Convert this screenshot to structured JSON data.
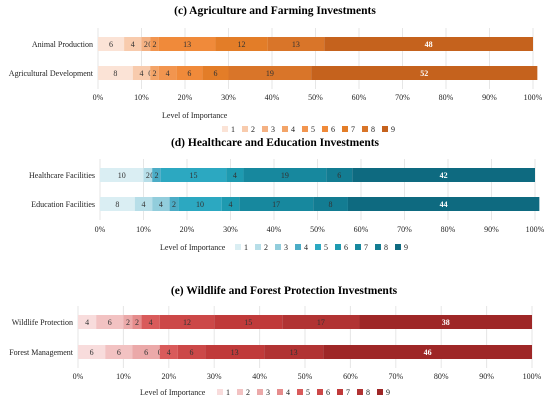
{
  "figure": {
    "legend_title": "Level of Importance",
    "levels": [
      "1",
      "2",
      "3",
      "4",
      "5",
      "6",
      "7",
      "8",
      "9"
    ]
  },
  "chart_data": [
    {
      "type": "bar",
      "orientation": "horizontal",
      "stacked": true,
      "title": "(c)   Agriculture and Farming Investments",
      "xlabel": "",
      "ylabel": "",
      "xlim": [
        0,
        100
      ],
      "x_ticks": [
        "0%",
        "10%",
        "20%",
        "30%",
        "40%",
        "50%",
        "60%",
        "70%",
        "80%",
        "90%",
        "100%"
      ],
      "legend_title": "Level of Importance",
      "legend_position": "bottom",
      "palette": [
        "#FBE3D6",
        "#F8CBAD",
        "#F4B183",
        "#F3A468",
        "#F2954F",
        "#F08A3A",
        "#E37D28",
        "#D97529",
        "#C5621D"
      ],
      "label_colors": [
        "#333333",
        "#333333",
        "#333333",
        "#333333",
        "#333333",
        "#333333",
        "#333333",
        "#333333",
        "#ffffff"
      ],
      "categories": [
        "Animal Production",
        "Agricultural Development"
      ],
      "series": [
        {
          "name": "1",
          "values": [
            6,
            8
          ]
        },
        {
          "name": "2",
          "values": [
            4,
            4
          ]
        },
        {
          "name": "3",
          "values": [
            2,
            0
          ]
        },
        {
          "name": "4",
          "values": [
            0,
            2
          ]
        },
        {
          "name": "5",
          "values": [
            2,
            4
          ]
        },
        {
          "name": "6",
          "values": [
            13,
            6
          ]
        },
        {
          "name": "7",
          "values": [
            12,
            6
          ]
        },
        {
          "name": "8",
          "values": [
            13,
            19
          ]
        },
        {
          "name": "9",
          "values": [
            48,
            52
          ]
        }
      ]
    },
    {
      "type": "bar",
      "orientation": "horizontal",
      "stacked": true,
      "title": "(d)   Healthcare and Education Investments",
      "xlabel": "",
      "ylabel": "",
      "xlim": [
        0,
        100
      ],
      "x_ticks": [
        "0%",
        "10%",
        "20%",
        "30%",
        "40%",
        "50%",
        "60%",
        "70%",
        "80%",
        "90%",
        "100%"
      ],
      "legend_title": "Level of Importance",
      "legend_position": "bottom",
      "palette": [
        "#DAEEF3",
        "#B7DEE8",
        "#92CDDC",
        "#4BACC6",
        "#2CA8C1",
        "#1E9AB0",
        "#17889E",
        "#137C92",
        "#0E6A80"
      ],
      "label_colors": [
        "#333333",
        "#333333",
        "#333333",
        "#333333",
        "#333333",
        "#333333",
        "#333333",
        "#333333",
        "#ffffff"
      ],
      "categories": [
        "Healthcare Facilities",
        "Education Facilities"
      ],
      "series": [
        {
          "name": "1",
          "values": [
            10,
            8
          ]
        },
        {
          "name": "2",
          "values": [
            2,
            4
          ]
        },
        {
          "name": "3",
          "values": [
            0,
            4
          ]
        },
        {
          "name": "4",
          "values": [
            2,
            2
          ]
        },
        {
          "name": "5",
          "values": [
            15,
            10
          ]
        },
        {
          "name": "6",
          "values": [
            4,
            4
          ]
        },
        {
          "name": "7",
          "values": [
            19,
            17
          ]
        },
        {
          "name": "8",
          "values": [
            6,
            8
          ]
        },
        {
          "name": "9",
          "values": [
            42,
            44
          ]
        }
      ]
    },
    {
      "type": "bar",
      "orientation": "horizontal",
      "stacked": true,
      "title": "(e)   Wildlife and Forest Protection Investments",
      "xlabel": "",
      "ylabel": "",
      "xlim": [
        0,
        100
      ],
      "x_ticks": [
        "0%",
        "10%",
        "20%",
        "30%",
        "40%",
        "50%",
        "60%",
        "70%",
        "80%",
        "90%",
        "100%"
      ],
      "legend_title": "Level of Importance",
      "legend_position": "bottom",
      "palette": [
        "#F8DCDC",
        "#F2C2C2",
        "#EBA9A9",
        "#E58C8C",
        "#D95B5B",
        "#CC4848",
        "#C03A3A",
        "#B13333",
        "#9E2727"
      ],
      "label_colors": [
        "#333333",
        "#333333",
        "#333333",
        "#333333",
        "#333333",
        "#333333",
        "#333333",
        "#333333",
        "#ffffff"
      ],
      "categories": [
        "Wildlife Protection",
        "Forest Management"
      ],
      "series": [
        {
          "name": "1",
          "values": [
            4,
            6
          ]
        },
        {
          "name": "2",
          "values": [
            6,
            6
          ]
        },
        {
          "name": "3",
          "values": [
            2,
            6
          ]
        },
        {
          "name": "4",
          "values": [
            2,
            0
          ]
        },
        {
          "name": "5",
          "values": [
            4,
            4
          ]
        },
        {
          "name": "6",
          "values": [
            12,
            6
          ]
        },
        {
          "name": "7",
          "values": [
            15,
            13
          ]
        },
        {
          "name": "8",
          "values": [
            17,
            13
          ]
        },
        {
          "name": "9",
          "values": [
            38,
            46
          ]
        }
      ]
    }
  ]
}
